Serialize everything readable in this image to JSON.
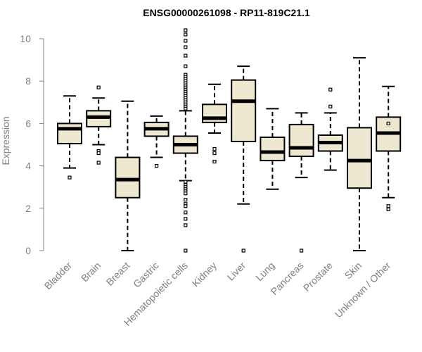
{
  "chart_data": {
    "type": "boxplot",
    "title": "ENSG00000261098 - RP11-819C21.1",
    "xlabel": "",
    "ylabel": "Expression",
    "ylim": [
      0,
      10
    ],
    "yticks": [
      0,
      2,
      4,
      6,
      8,
      10
    ],
    "box_fill": "#EFE8D0",
    "categories": [
      "Bladder",
      "Brain",
      "Breast",
      "Gastric",
      "Hematopoietic cells",
      "Kidney",
      "Liver",
      "Lung",
      "Pancreas",
      "Prostate",
      "Skin",
      "Unknown / Other"
    ],
    "boxes": [
      {
        "name": "Bladder",
        "whisker_low": 3.9,
        "q1": 5.05,
        "median": 5.75,
        "q3": 6.0,
        "whisker_high": 7.3,
        "outliers": [
          3.45
        ]
      },
      {
        "name": "Brain",
        "whisker_low": 5.0,
        "q1": 5.85,
        "median": 6.3,
        "q3": 6.6,
        "whisker_high": 7.2,
        "outliers": [
          7.7,
          4.7,
          4.6,
          4.15
        ]
      },
      {
        "name": "Breast",
        "whisker_low": 0.0,
        "q1": 2.5,
        "median": 3.35,
        "q3": 4.4,
        "whisker_high": 7.05,
        "outliers": []
      },
      {
        "name": "Gastric",
        "whisker_low": 4.4,
        "q1": 5.4,
        "median": 5.75,
        "q3": 6.05,
        "whisker_high": 6.35,
        "outliers": [
          4.0
        ]
      },
      {
        "name": "Hematopoietic cells",
        "whisker_low": 3.3,
        "q1": 4.6,
        "median": 5.0,
        "q3": 5.4,
        "whisker_high": 6.6,
        "outliers": [
          10.4,
          10.2,
          9.9,
          9.6,
          9.2,
          8.7,
          8.3,
          8.2,
          8.1,
          8.0,
          7.9,
          7.8,
          7.7,
          7.6,
          7.5,
          7.4,
          7.3,
          7.2,
          7.1,
          7.0,
          6.9,
          6.8,
          6.7,
          3.25,
          3.1,
          3.0,
          2.9,
          2.8,
          2.7,
          2.4,
          2.2,
          2.1,
          1.8,
          1.5,
          1.2,
          0.0
        ]
      },
      {
        "name": "Kidney",
        "whisker_low": 5.55,
        "q1": 6.05,
        "median": 6.25,
        "q3": 6.9,
        "whisker_high": 7.85,
        "outliers": [
          4.8,
          4.6,
          4.2
        ]
      },
      {
        "name": "Liver",
        "whisker_low": 2.2,
        "q1": 5.15,
        "median": 7.05,
        "q3": 8.05,
        "whisker_high": 8.7,
        "outliers": [
          0.0
        ]
      },
      {
        "name": "Lung",
        "whisker_low": 2.9,
        "q1": 4.25,
        "median": 4.65,
        "q3": 5.35,
        "whisker_high": 6.7,
        "outliers": []
      },
      {
        "name": "Pancreas",
        "whisker_low": 3.45,
        "q1": 4.45,
        "median": 4.85,
        "q3": 5.95,
        "whisker_high": 6.5,
        "outliers": [
          0.0
        ]
      },
      {
        "name": "Prostate",
        "whisker_low": 3.8,
        "q1": 4.7,
        "median": 5.1,
        "q3": 5.45,
        "whisker_high": 6.5,
        "outliers": [
          7.6,
          6.8
        ]
      },
      {
        "name": "Skin",
        "whisker_low": 0.0,
        "q1": 2.95,
        "median": 4.25,
        "q3": 5.8,
        "whisker_high": 9.1,
        "outliers": []
      },
      {
        "name": "Unknown / Other",
        "whisker_low": 2.5,
        "q1": 4.7,
        "median": 5.55,
        "q3": 6.3,
        "whisker_high": 7.75,
        "outliers": [
          6.0,
          2.1,
          1.95
        ]
      }
    ]
  }
}
